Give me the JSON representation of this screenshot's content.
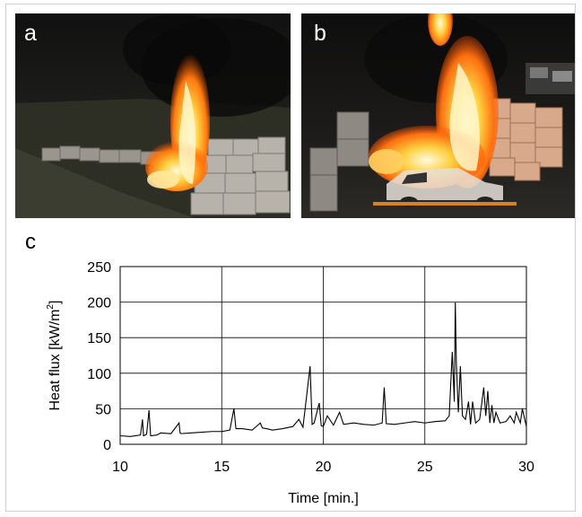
{
  "panels": {
    "a": {
      "label": "a"
    },
    "b": {
      "label": "b"
    },
    "c": {
      "label": "c"
    }
  },
  "colors": {
    "flame": "#ff8a1c",
    "flame_core": "#fff2b0",
    "smoke": "#151515",
    "wall": "#b7b3ab",
    "line": "#000000"
  },
  "chart_data": {
    "type": "line",
    "xlabel": "Time [min.]",
    "ylabel": "Heat flux [kW/m",
    "ylabel_sup": "2",
    "ylabel_end": "]",
    "xlim": [
      10,
      30
    ],
    "ylim": [
      0,
      250
    ],
    "xticks": [
      10,
      15,
      20,
      25,
      30
    ],
    "yticks": [
      0,
      50,
      100,
      150,
      200,
      250
    ],
    "grid": true,
    "series": [
      {
        "x": [
          10,
          10.5,
          11,
          11.1,
          11.15,
          11.3,
          11.42,
          11.5,
          11.8,
          12,
          12.5,
          12.9,
          12.95,
          13,
          13.5,
          14,
          14.5,
          15,
          15.4,
          15.6,
          15.7,
          16,
          16.5,
          16.9,
          17,
          17.2,
          17.5,
          18,
          18.5,
          18.8,
          19,
          19.35,
          19.45,
          19.55,
          19.8,
          19.9,
          20,
          20.2,
          20.5,
          20.8,
          21,
          21.5,
          22,
          22.5,
          22.9,
          23,
          23.1,
          23.5,
          24,
          24.5,
          25,
          25.5,
          26,
          26.2,
          26.35,
          26.45,
          26.5,
          26.55,
          26.65,
          26.75,
          26.85,
          27,
          27.15,
          27.25,
          27.35,
          27.5,
          27.7,
          27.9,
          28,
          28.1,
          28.2,
          28.3,
          28.4,
          28.5,
          28.7,
          29,
          29.2,
          29.4,
          29.5,
          29.7,
          29.8,
          30
        ],
        "y": [
          12,
          11,
          13,
          35,
          12,
          14,
          48,
          12,
          13,
          16,
          15,
          30,
          16,
          15,
          16,
          17,
          18,
          18,
          20,
          50,
          22,
          22,
          20,
          30,
          23,
          22,
          20,
          22,
          25,
          35,
          24,
          110,
          28,
          30,
          58,
          26,
          25,
          40,
          27,
          45,
          28,
          30,
          28,
          27,
          30,
          80,
          29,
          28,
          30,
          32,
          30,
          32,
          33,
          40,
          130,
          60,
          200,
          115,
          45,
          110,
          40,
          35,
          60,
          28,
          60,
          30,
          35,
          80,
          40,
          75,
          30,
          55,
          30,
          45,
          30,
          32,
          40,
          30,
          45,
          30,
          50,
          25
        ]
      }
    ]
  }
}
